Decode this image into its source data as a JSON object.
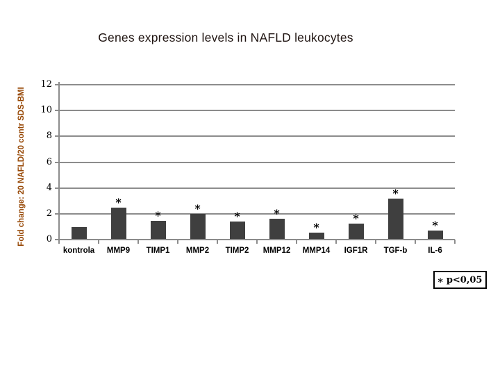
{
  "slide": {
    "title": "Genes expression levels in NAFLD leukocytes"
  },
  "chart_data": {
    "type": "bar",
    "title": "Genes expression levels in NAFLD leukocytes",
    "ylabel": "Fold change: 20 NAFLD/20 contr SDS-BMI",
    "xlabel": "",
    "categories": [
      "kontrola",
      "MMP9",
      "TIMP1",
      "MMP2",
      "TIMP2",
      "MMP12",
      "MMP14",
      "IGF1R",
      "TGF-b",
      "IL-6"
    ],
    "values": [
      0.9,
      2.4,
      1.4,
      1.95,
      1.35,
      1.55,
      0.5,
      1.2,
      3.1,
      0.65
    ],
    "significant": [
      false,
      true,
      true,
      true,
      true,
      true,
      true,
      true,
      true,
      true
    ],
    "significance_marker": "*",
    "yticks": [
      0,
      2,
      4,
      6,
      8,
      10,
      12
    ],
    "ylim": [
      0,
      12
    ],
    "grid": true,
    "legend": {
      "marker": "*",
      "text": "p<0,05",
      "position": "bottom-right"
    },
    "colors": {
      "bar": "#3f3f3f",
      "gridline": "#8c8c8c",
      "axis": "#8c8c8c",
      "title_text": "#201512",
      "ylabel_text": "#974806",
      "tick_text": "#000000"
    }
  }
}
